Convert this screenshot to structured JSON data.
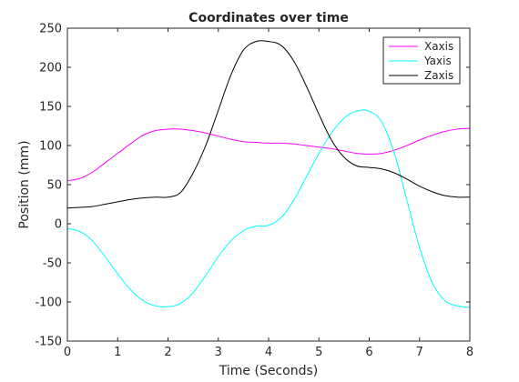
{
  "chart_data": {
    "type": "line",
    "title": "Coordinates over time",
    "xlabel": "Time (Seconds)",
    "ylabel": "Position (mm)",
    "xlim": [
      0,
      8
    ],
    "ylim": [
      -150,
      250
    ],
    "xticks": [
      "0",
      "1",
      "2",
      "3",
      "4",
      "5",
      "6",
      "7",
      "8"
    ],
    "yticks": [
      "-150",
      "-100",
      "-50",
      "0",
      "50",
      "100",
      "150",
      "200",
      "250"
    ],
    "grid": false,
    "legend_position": "top-right",
    "series": [
      {
        "name": "Xaxis",
        "color": "#ff00ff",
        "x": [
          0,
          0.25,
          0.5,
          0.75,
          1,
          1.25,
          1.5,
          1.75,
          2,
          2.25,
          2.5,
          2.75,
          3,
          3.25,
          3.5,
          3.75,
          4,
          4.25,
          4.5,
          4.75,
          5,
          5.25,
          5.5,
          5.75,
          6,
          6.25,
          6.5,
          6.75,
          7,
          7.25,
          7.5,
          7.75,
          8
        ],
        "y": [
          55,
          58,
          66,
          78,
          90,
          102,
          113,
          119,
          121,
          121,
          119,
          116,
          112,
          108,
          105,
          104,
          103,
          103,
          102,
          100,
          98,
          96,
          93,
          90,
          89,
          90,
          94,
          100,
          107,
          113,
          118,
          121,
          122
        ]
      },
      {
        "name": "Yaxis",
        "color": "#00ffff",
        "x": [
          0,
          0.25,
          0.5,
          0.75,
          1,
          1.25,
          1.5,
          1.75,
          2,
          2.25,
          2.5,
          2.75,
          3,
          3.25,
          3.5,
          3.75,
          4,
          4.25,
          4.5,
          4.75,
          5,
          5.25,
          5.5,
          5.75,
          6,
          6.25,
          6.5,
          6.75,
          7,
          7.25,
          7.5,
          7.75,
          8
        ],
        "y": [
          -6,
          -10,
          -22,
          -42,
          -64,
          -84,
          -98,
          -105,
          -106,
          -102,
          -88,
          -66,
          -42,
          -22,
          -9,
          -3,
          -2,
          8,
          30,
          60,
          90,
          116,
          135,
          144,
          144,
          130,
          90,
          30,
          -30,
          -75,
          -98,
          -105,
          -107
        ]
      },
      {
        "name": "Zaxis",
        "color": "#000000",
        "x": [
          0,
          0.25,
          0.5,
          0.75,
          1,
          1.25,
          1.5,
          1.75,
          2,
          2.25,
          2.5,
          2.75,
          3,
          3.25,
          3.5,
          3.75,
          4,
          4.25,
          4.5,
          4.75,
          5,
          5.25,
          5.5,
          5.75,
          6,
          6.25,
          6.5,
          6.75,
          7,
          7.25,
          7.5,
          7.75,
          8
        ],
        "y": [
          20,
          21,
          22,
          25,
          28,
          31,
          33,
          34,
          34,
          40,
          65,
          100,
          145,
          190,
          222,
          233,
          233,
          228,
          208,
          176,
          140,
          107,
          85,
          74,
          72,
          70,
          65,
          57,
          48,
          41,
          36,
          34,
          34
        ]
      }
    ]
  }
}
